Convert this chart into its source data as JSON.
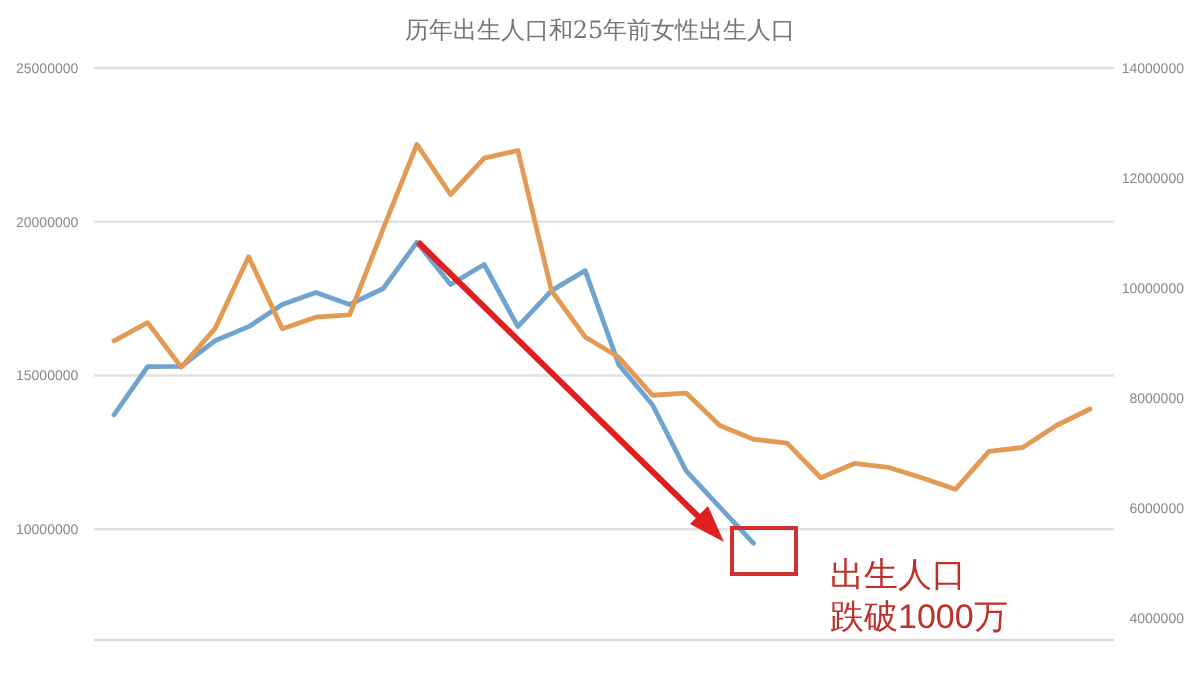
{
  "chart_data": {
    "type": "line",
    "title": "历年出生人口和25年前女性出生人口",
    "categories": [
      null,
      null,
      null,
      null,
      null,
      null,
      null,
      null,
      null,
      null,
      null,
      null,
      null,
      null,
      null,
      null,
      null,
      null,
      null,
      null,
      null,
      null,
      null,
      null,
      null,
      null,
      null,
      null,
      null,
      null
    ],
    "series": [
      {
        "color": "#6fa3d0",
        "values": [
          13720000,
          15290000,
          15300000,
          16130000,
          16590000,
          17310000,
          17700000,
          17310000,
          17830000,
          19330000,
          17960000,
          18610000,
          16590000,
          17760000,
          18410000,
          15350000,
          14050000,
          11900000,
          10720000,
          9550000,
          null,
          null,
          null,
          null,
          null,
          null,
          null,
          null,
          null,
          null
        ]
      },
      {
        "color": "#e39a55",
        "axis": "y2",
        "values": [
          9040000,
          9370000,
          8560000,
          9260000,
          10570000,
          9260000,
          9470000,
          9510000,
          11080000,
          12610000,
          11700000,
          12360000,
          12500000,
          9950000,
          9110000,
          8740000,
          8050000,
          8090000,
          7500000,
          7250000,
          7180000,
          6550000,
          6810000,
          6740000,
          6550000,
          6340000,
          7030000,
          7100000,
          7500000,
          7800000
        ]
      }
    ],
    "ylim": [
      6400000,
      25000000
    ],
    "yticks": [
      10000000,
      15000000,
      20000000,
      25000000
    ],
    "y2lim": [
      3600000,
      14000000
    ],
    "y2ticks": [
      4000000,
      6000000,
      8000000,
      10000000,
      12000000,
      14000000
    ],
    "grid": "y",
    "marker": "none",
    "line_style": "solid",
    "annotations": [
      "出生人口",
      "跌破1000万"
    ]
  }
}
